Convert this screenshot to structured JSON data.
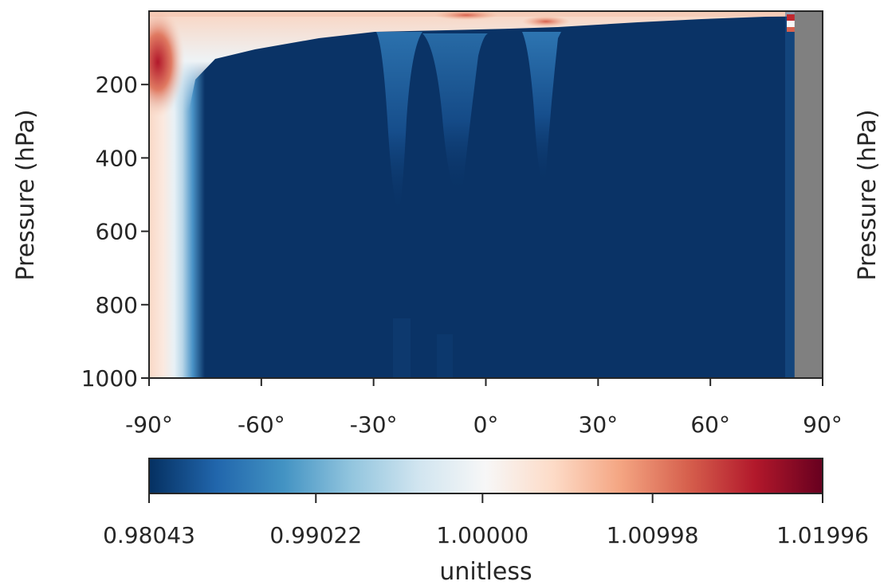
{
  "chart_data": {
    "type": "heatmap",
    "title": "",
    "xlabel": "",
    "ylabel": "Pressure (hPa)",
    "ylabel_right": "Pressure (hPa)",
    "xlim": [
      -90,
      90
    ],
    "ylim": [
      1000,
      0
    ],
    "y_inverted": true,
    "x_ticks": [
      -90,
      -60,
      -30,
      0,
      30,
      60,
      90
    ],
    "x_tick_labels": [
      "-90°",
      "-60°",
      "-30°",
      "0°",
      "30°",
      "60°",
      "90°"
    ],
    "y_ticks": [
      200,
      400,
      600,
      800,
      1000
    ],
    "y_tick_labels": [
      "200",
      "400",
      "600",
      "800",
      "1000"
    ],
    "missing_data_color": "#808080",
    "missing_data_lat_range": [
      82.5,
      90
    ],
    "colormap": "RdBu_r",
    "colorbar": {
      "orientation": "horizontal",
      "label": "unitless",
      "min": 0.98043,
      "max": 1.01996,
      "ticks": [
        0.98043,
        0.99022,
        1.0,
        1.00998,
        1.01996
      ],
      "tick_labels": [
        "0.98043",
        "0.99022",
        "1.00000",
        "1.00998",
        "1.01996"
      ]
    },
    "field_description_values": {
      "background_value": 0.98043,
      "south_polar_column_values": [
        {
          "lat": -88,
          "value": 1.004
        },
        {
          "lat": -84,
          "value": 0.999
        },
        {
          "lat": -80,
          "value": 0.992
        },
        {
          "lat": -78,
          "value": 0.986
        }
      ],
      "south_polar_upper_max": {
        "lat": -89,
        "pressure": 120,
        "value": 1.016
      },
      "upper_level_positive_band": {
        "pressure_range": [
          0,
          40
        ],
        "value_range": [
          1.0,
          1.012
        ]
      },
      "north_polar_upper_max": {
        "lat": 82,
        "pressure": 20,
        "value": 1.0199
      },
      "tropical_upper_lighter_regions": [
        {
          "lat": -22,
          "pressure_range": [
            40,
            280
          ],
          "value": 0.987
        },
        {
          "lat": -8,
          "pressure_range": [
            40,
            240
          ],
          "value": 0.986
        },
        {
          "lat": 14,
          "pressure_range": [
            40,
            240
          ],
          "value": 0.988
        }
      ]
    }
  }
}
